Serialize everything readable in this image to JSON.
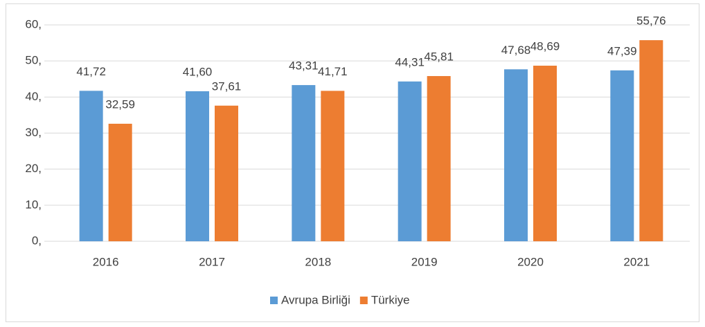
{
  "chart_data": {
    "type": "bar",
    "categories": [
      "2016",
      "2017",
      "2018",
      "2019",
      "2020",
      "2021"
    ],
    "series": [
      {
        "name": "Avrupa Birliği",
        "color": "#5b9bd5",
        "values": [
          41.72,
          41.6,
          43.31,
          44.31,
          47.68,
          47.39
        ],
        "value_labels": [
          "41,72",
          "41,60",
          "43,31",
          "44,31",
          "47,68",
          "47,39"
        ]
      },
      {
        "name": "Türkiye",
        "color": "#ed7d31",
        "values": [
          32.59,
          37.61,
          41.71,
          45.81,
          48.69,
          55.76
        ],
        "value_labels": [
          "32,59",
          "37,61",
          "41,71",
          "45,81",
          "48,69",
          "55,76"
        ]
      }
    ],
    "ylim": [
      0,
      60
    ],
    "yticks": [
      {
        "value": 0,
        "label": "0,"
      },
      {
        "value": 10,
        "label": "10,"
      },
      {
        "value": 20,
        "label": "20,"
      },
      {
        "value": 30,
        "label": "30,"
      },
      {
        "value": 40,
        "label": "40,"
      },
      {
        "value": 50,
        "label": "50,"
      },
      {
        "value": 60,
        "label": "60,"
      }
    ],
    "grid": true,
    "legend": "bottom"
  }
}
